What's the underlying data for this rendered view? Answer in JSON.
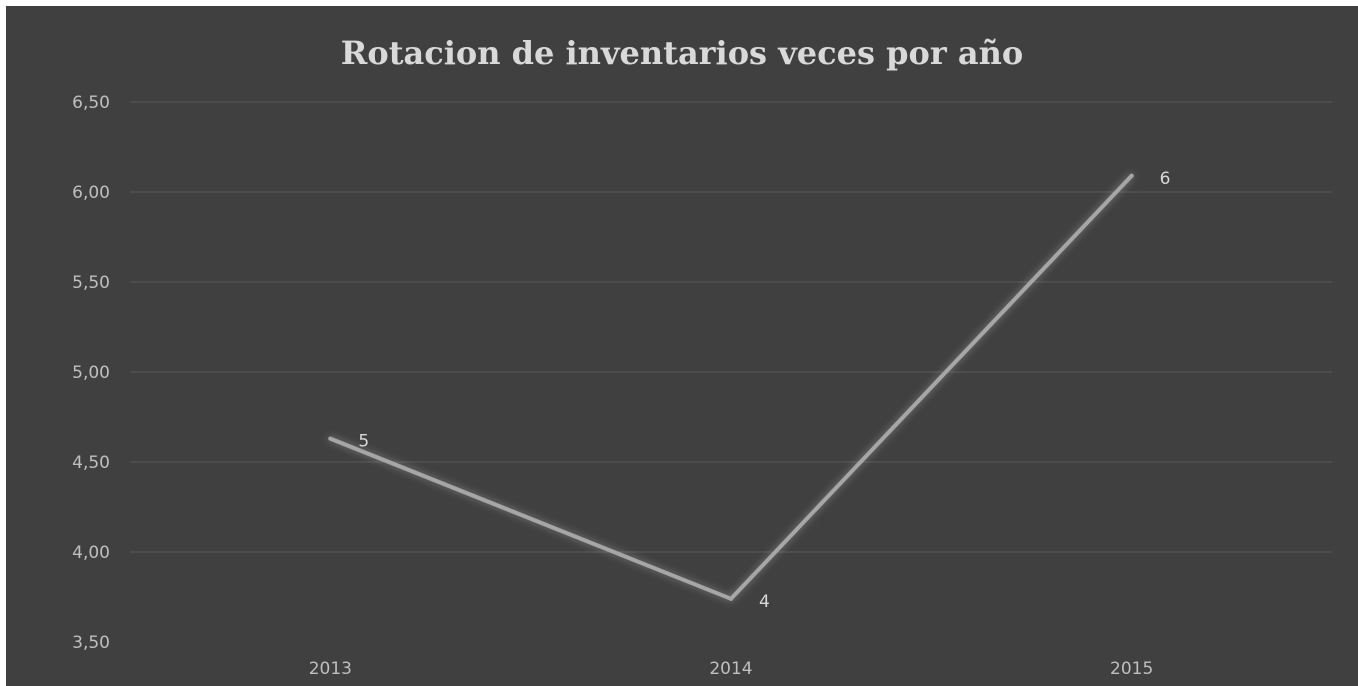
{
  "chart_data": {
    "type": "line",
    "title": "Rotacion de inventarios veces por año",
    "categories": [
      "2013",
      "2014",
      "2015"
    ],
    "series": [
      {
        "values": [
          4.63,
          3.74,
          6.09
        ],
        "data_labels": [
          "5",
          "4",
          "6"
        ],
        "color": "#a6a6a6"
      }
    ],
    "y_ticks": [
      "3,50",
      "4,00",
      "4,50",
      "5,00",
      "5,50",
      "6,00",
      "6,50"
    ],
    "ylim": [
      3.5,
      6.5
    ],
    "grid": true,
    "legend": "none",
    "xlabel": "",
    "ylabel": ""
  },
  "colors": {
    "background": "#404040",
    "gridline": "#595959",
    "text": "#bfbfbf",
    "title": "#d9d9d9",
    "line": "#a6a6a6"
  }
}
